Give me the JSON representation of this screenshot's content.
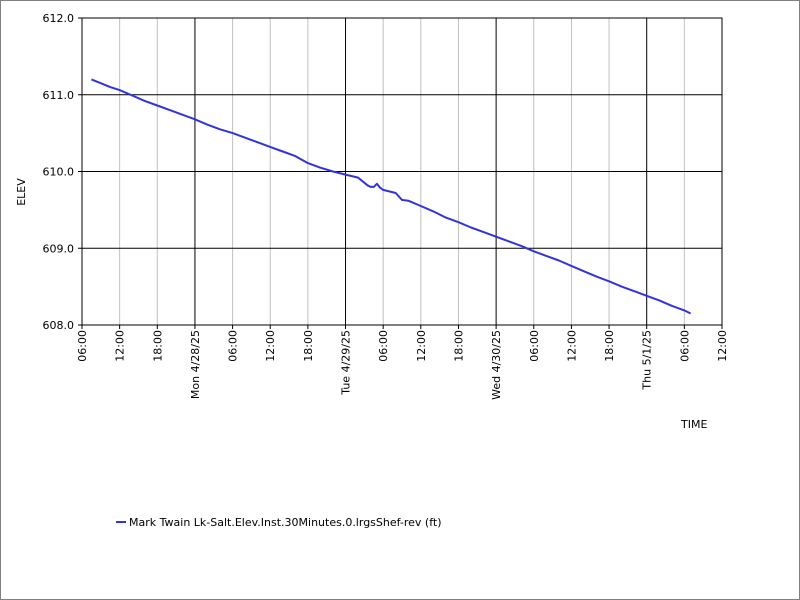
{
  "chart_data": {
    "type": "line",
    "ylabel": "ELEV",
    "xlabel": "TIME",
    "ylim": [
      608.0,
      612.0
    ],
    "y_ticks": [
      "608.0",
      "609.0",
      "610.0",
      "611.0",
      "612.0"
    ],
    "x_range_hours": [
      0,
      102
    ],
    "x_ticks": [
      {
        "h": 0,
        "label": "06:00",
        "major": false
      },
      {
        "h": 6,
        "label": "12:00",
        "major": false
      },
      {
        "h": 12,
        "label": "18:00",
        "major": false
      },
      {
        "h": 18,
        "label": "Mon 4/28/25",
        "major": true
      },
      {
        "h": 24,
        "label": "06:00",
        "major": false
      },
      {
        "h": 30,
        "label": "12:00",
        "major": false
      },
      {
        "h": 36,
        "label": "18:00",
        "major": false
      },
      {
        "h": 42,
        "label": "Tue 4/29/25",
        "major": true
      },
      {
        "h": 48,
        "label": "06:00",
        "major": false
      },
      {
        "h": 54,
        "label": "12:00",
        "major": false
      },
      {
        "h": 60,
        "label": "18:00",
        "major": false
      },
      {
        "h": 66,
        "label": "Wed 4/30/25",
        "major": true
      },
      {
        "h": 72,
        "label": "06:00",
        "major": false
      },
      {
        "h": 78,
        "label": "12:00",
        "major": false
      },
      {
        "h": 84,
        "label": "18:00",
        "major": false
      },
      {
        "h": 90,
        "label": "Thu 5/1/25",
        "major": true
      },
      {
        "h": 96,
        "label": "06:00",
        "major": false
      },
      {
        "h": 102,
        "label": "12:00",
        "major": false
      }
    ],
    "grid": true,
    "series": [
      {
        "name": "Mark Twain Lk-Salt.Elev.Inst.30Minutes.0.lrgsShef-rev (ft)",
        "color": "#3333dd",
        "x": [
          1.5,
          3,
          4.5,
          6,
          8,
          10,
          12,
          14,
          16,
          18,
          20,
          22,
          24,
          26,
          28,
          30,
          32,
          34,
          36,
          38,
          40,
          42,
          44,
          45.5,
          46,
          46.5,
          47,
          47.5,
          48,
          50,
          51,
          52,
          54,
          56,
          58,
          60,
          62,
          64,
          66,
          68,
          70,
          72,
          74,
          76,
          78,
          80,
          82,
          84,
          86,
          88,
          90,
          92,
          94,
          96,
          97
        ],
        "y": [
          611.2,
          611.15,
          611.1,
          611.06,
          610.99,
          610.92,
          610.86,
          610.8,
          610.74,
          610.68,
          610.61,
          610.55,
          610.5,
          610.44,
          610.38,
          610.32,
          610.26,
          610.2,
          610.11,
          610.05,
          610.0,
          609.96,
          609.92,
          609.82,
          609.8,
          609.8,
          609.84,
          609.79,
          609.76,
          609.72,
          609.63,
          609.62,
          609.55,
          609.48,
          609.4,
          609.34,
          609.27,
          609.21,
          609.15,
          609.09,
          609.03,
          608.96,
          608.9,
          608.84,
          608.77,
          608.7,
          608.63,
          608.57,
          608.5,
          608.44,
          608.38,
          608.32,
          608.25,
          608.19,
          608.15
        ]
      }
    ]
  }
}
